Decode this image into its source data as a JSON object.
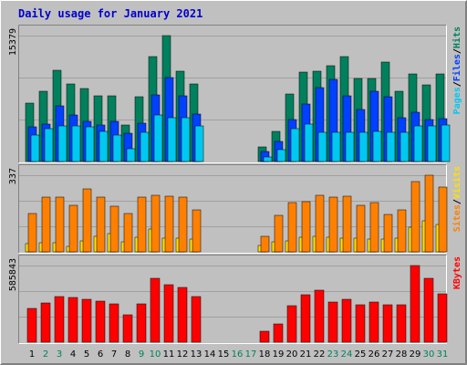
{
  "chart_data": {
    "type": "bar",
    "title": "Daily usage for January 2021",
    "x": [
      "1",
      "2",
      "3",
      "4",
      "5",
      "6",
      "7",
      "8",
      "9",
      "10",
      "11",
      "12",
      "13",
      "14",
      "15",
      "16",
      "17",
      "18",
      "19",
      "20",
      "21",
      "22",
      "23",
      "24",
      "25",
      "26",
      "27",
      "28",
      "29",
      "30",
      "31"
    ],
    "weekend_days": [
      2,
      3,
      9,
      10,
      16,
      17,
      23,
      24,
      30,
      31
    ],
    "panels": [
      {
        "id": "hits",
        "ymax_label": "15379",
        "ymax": 15379,
        "right_labels": [
          {
            "text": "Pages",
            "color": "#00c8f0"
          },
          {
            "text": "/",
            "color": "#000000"
          },
          {
            "text": "Files",
            "color": "#0040ff"
          },
          {
            "text": "/",
            "color": "#000000"
          },
          {
            "text": "Hits",
            "color": "#00805c"
          }
        ],
        "series": [
          {
            "name": "Hits",
            "color": "#00805c",
            "values": [
              7100,
              8600,
              11100,
              9500,
              8900,
              8000,
              8000,
              4500,
              7900,
              12800,
              15379,
              11000,
              9500,
              null,
              null,
              null,
              null,
              1800,
              3700,
              8200,
              10900,
              11000,
              11700,
              12800,
              10100,
              10100,
              12100,
              8600,
              10700,
              9400,
              10700
            ]
          },
          {
            "name": "Files",
            "color": "#0040ff",
            "values": [
              4200,
              4600,
              6800,
              5700,
              4900,
              4500,
              4900,
              3400,
              4700,
              8100,
              10200,
              8000,
              5800,
              null,
              null,
              null,
              null,
              1200,
              2500,
              5100,
              7000,
              9000,
              10000,
              8000,
              6300,
              8600,
              7900,
              5300,
              6000,
              5100,
              5200
            ]
          },
          {
            "name": "Pages",
            "color": "#00c8f0",
            "values": [
              3200,
              4000,
              4400,
              4400,
              4200,
              3700,
              3200,
              1600,
              3600,
              5700,
              5300,
              5400,
              4400,
              null,
              null,
              null,
              null,
              600,
              1500,
              4000,
              4600,
              3600,
              3600,
              3600,
              3600,
              3700,
              3600,
              3600,
              4300,
              4400,
              4500
            ]
          }
        ]
      },
      {
        "id": "visits",
        "ymax_label": "337",
        "ymax": 337,
        "right_labels": [
          {
            "text": "Sites",
            "color": "#ff8000"
          },
          {
            "text": "/",
            "color": "#000000"
          },
          {
            "text": "Visits",
            "color": "#ffe000"
          }
        ],
        "series": [
          {
            "name": "Visits",
            "color": "#ffe000",
            "values": [
              35,
              40,
              40,
              25,
              50,
              70,
              80,
              45,
              65,
              100,
              60,
              60,
              55,
              null,
              null,
              null,
              null,
              30,
              45,
              50,
              65,
              70,
              65,
              60,
              60,
              55,
              55,
              60,
              110,
              135,
              120
            ]
          },
          {
            "name": "Sites",
            "color": "#ff8000",
            "values": [
              170,
              240,
              240,
              205,
              275,
              240,
              200,
              170,
              240,
              250,
              245,
              240,
              185,
              null,
              null,
              null,
              null,
              70,
              160,
              215,
              220,
              250,
              240,
              245,
              205,
              215,
              165,
              185,
              310,
              337,
              285
            ]
          }
        ]
      },
      {
        "id": "kbytes",
        "ymax_label": "585843",
        "ymax": 585843,
        "right_labels": [
          {
            "text": "KBytes",
            "color": "#ff0000"
          }
        ],
        "series": [
          {
            "name": "KBytes",
            "color": "#ff0000",
            "values": [
              260000,
              300000,
              350000,
              340000,
              330000,
              315000,
              290000,
              210000,
              290000,
              490000,
              440000,
              415000,
              350000,
              null,
              null,
              null,
              null,
              85000,
              140000,
              280000,
              365000,
              395000,
              310000,
              325000,
              285000,
              305000,
              285000,
              285000,
              585843,
              485000,
              370000
            ]
          }
        ]
      }
    ],
    "colors": {
      "background": "#c0c0c0",
      "title": "#0000cc",
      "weekday_label": "#000000",
      "weekend_label": "#00805c",
      "grid": "#a0a0a0"
    }
  }
}
